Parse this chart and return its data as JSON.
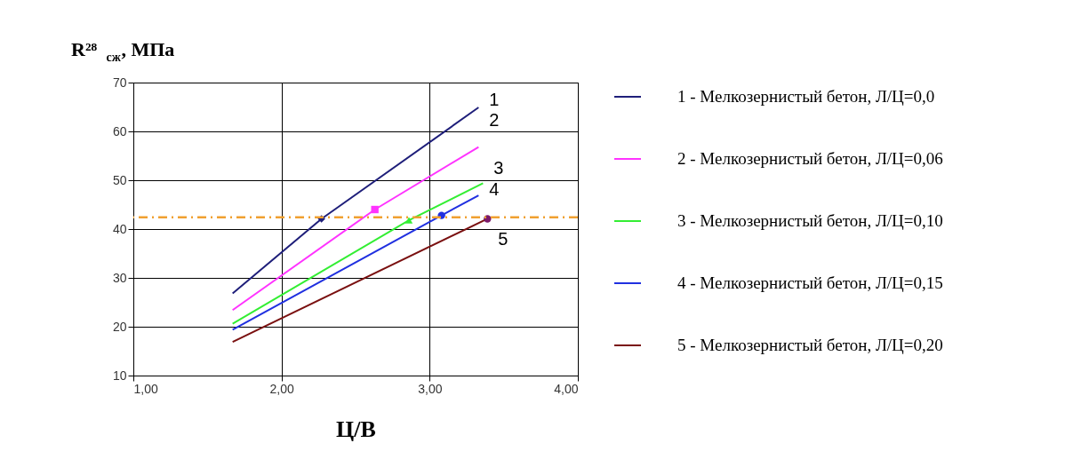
{
  "chart_data": {
    "type": "line",
    "xlabel": "Ц/В",
    "ylabel": "R²⁸$_{сж}$, МПа",
    "xlim": [
      1.0,
      4.0
    ],
    "xticks": [
      {
        "value": 1.0,
        "label": "1,00"
      },
      {
        "value": 2.0,
        "label": "2,00"
      },
      {
        "value": 3.0,
        "label": "3,00"
      },
      {
        "value": 4.0,
        "label": "4,00"
      }
    ],
    "ylim": [
      10,
      70
    ],
    "yticks": [
      10,
      20,
      30,
      40,
      50,
      60,
      70
    ],
    "grid": true,
    "legend": "right",
    "marker": "none",
    "line_style": "solid",
    "series": [
      {
        "name": "1 -  Мелкозернистый бетон, Л/Ц=0,0",
        "color": "#1f1f7a",
        "x": [
          1.67,
          2.27,
          3.33
        ],
        "values": [
          26.8,
          42.1,
          64.9
        ]
      },
      {
        "name": "2 -   Мелкозернистый бетон, Л/Ц=0,06",
        "color": "#ff33ff",
        "x": [
          1.67,
          2.63,
          3.33
        ],
        "values": [
          23.4,
          44.0,
          56.8
        ]
      },
      {
        "name": "3 -   Мелкозернистый бетон, Л/Ц=0,10",
        "color": "#33ee33",
        "x": [
          1.67,
          2.86,
          3.36
        ],
        "values": [
          20.6,
          41.8,
          49.4
        ]
      },
      {
        "name": "4 -   Мелкозернистый бетон, Л/Ц=0,15",
        "color": "#2030e0",
        "x": [
          1.67,
          3.08,
          3.33
        ],
        "values": [
          19.4,
          42.8,
          46.9
        ]
      },
      {
        "name": "5 -   Мелкозернистый бетон, Л/Ц=0,20",
        "color": "#7a1010",
        "x": [
          1.67,
          3.39
        ],
        "values": [
          16.9,
          42.1
        ]
      },
      {
        "type": "scatter",
        "color": "#1f1f7a",
        "marker": "diamond",
        "x": [
          2.27
        ],
        "values": [
          42.1
        ]
      },
      {
        "type": "scatter",
        "color": "#ff33ff",
        "marker": "square",
        "x": [
          2.63
        ],
        "values": [
          44.0
        ]
      },
      {
        "type": "scatter",
        "color": "#33ee33",
        "marker": "triangle",
        "x": [
          2.86
        ],
        "values": [
          41.8
        ]
      },
      {
        "type": "scatter",
        "color": "#2030e0",
        "marker": "circle",
        "x": [
          3.08
        ],
        "values": [
          42.8
        ]
      },
      {
        "type": "scatter",
        "color": "#7a1a6a",
        "marker": "circle",
        "x": [
          3.39
        ],
        "values": [
          42.1
        ]
      }
    ],
    "ref_lines": [
      {
        "axis": "y",
        "value": 42.4,
        "color": "#f0a030",
        "line_style": "dashed"
      }
    ],
    "annotations": [
      "1",
      "2",
      "3",
      "4",
      "5"
    ]
  }
}
